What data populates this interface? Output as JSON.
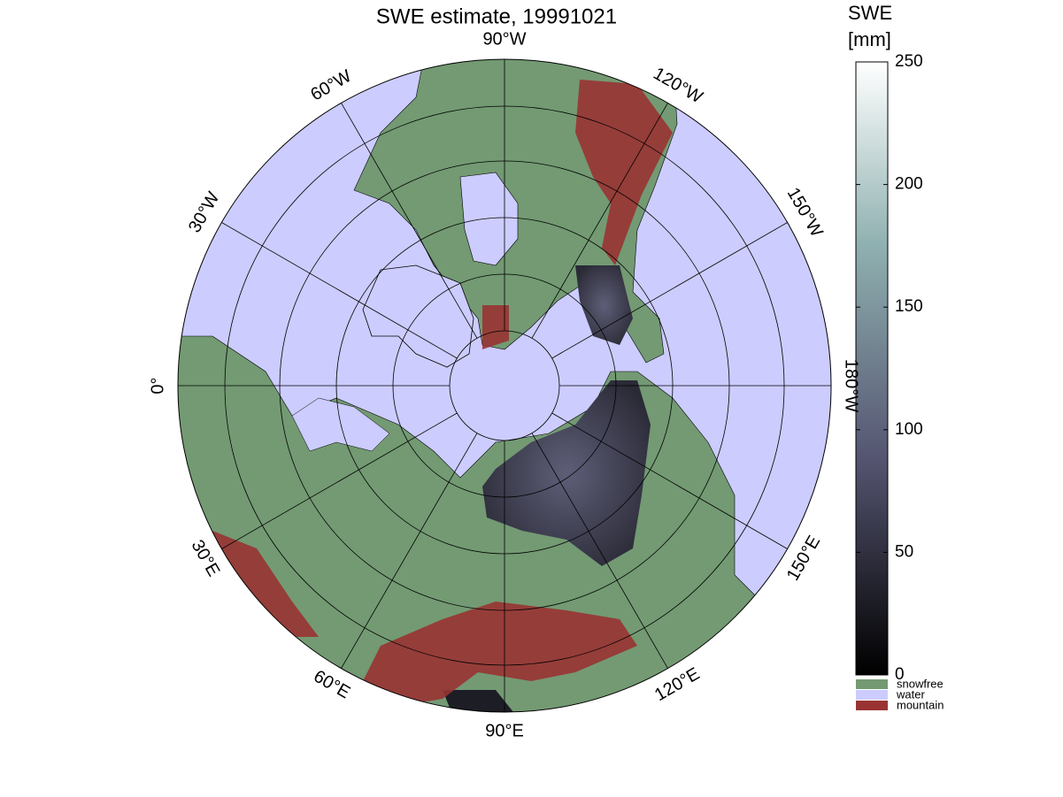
{
  "title": "SWE estimate, 19991021",
  "longitude_labels": [
    "0°",
    "30°W",
    "60°W",
    "90°W",
    "120°W",
    "150°W",
    "180°W",
    "150°E",
    "120°E",
    "90°E",
    "60°E",
    "30°E"
  ],
  "colorbar": {
    "title": [
      "SWE",
      "[mm]"
    ],
    "lim": [
      0,
      250
    ],
    "ticks": [
      0,
      50,
      100,
      150,
      200,
      250
    ]
  },
  "legend": [
    {
      "label": "snowfree",
      "color": "#739a73"
    },
    {
      "label": "water",
      "color": "#ccccff"
    },
    {
      "label": "mountain",
      "color": "#993333"
    }
  ]
}
